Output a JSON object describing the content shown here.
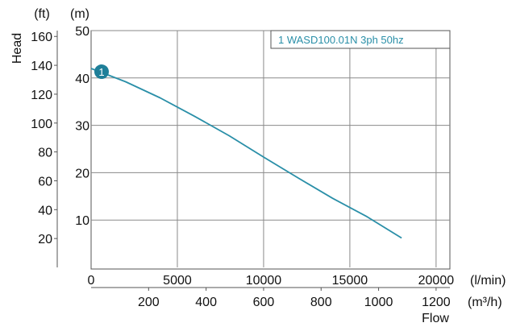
{
  "chart_data": {
    "type": "line",
    "ylabel": "Head",
    "xlabel": "Flow",
    "left_outer_axis": {
      "unit": "(ft)",
      "ticks": [
        "20",
        "40",
        "60",
        "80",
        "100",
        "120",
        "140",
        "160"
      ],
      "values": [
        20,
        40,
        60,
        80,
        100,
        120,
        140,
        160
      ]
    },
    "left_inner_axis": {
      "unit": "(m)",
      "ticks": [
        "10",
        "20",
        "30",
        "40",
        "50"
      ],
      "values": [
        10,
        20,
        30,
        40,
        50
      ],
      "ylim": [
        0,
        50
      ]
    },
    "bottom_axis_primary": {
      "unit": "(l/min)",
      "ticks": [
        "0",
        "5000",
        "10000",
        "15000",
        "20000"
      ],
      "values": [
        0,
        5000,
        10000,
        15000,
        20000
      ],
      "xlim": [
        0,
        20800
      ]
    },
    "bottom_axis_secondary": {
      "unit": "(m³/h)",
      "ticks": [
        "200",
        "400",
        "600",
        "800",
        "1000",
        "1200"
      ],
      "values": [
        200,
        400,
        600,
        800,
        1000,
        1200
      ]
    },
    "legend": {
      "text": "1 WASD100.01N 3ph 50hz",
      "position": "top-right"
    },
    "series": [
      {
        "name": "1 WASD100.01N 3ph 50hz",
        "color": "#2a8fa8",
        "marker": "1",
        "x": [
          0,
          2000,
          4000,
          6000,
          8000,
          10000,
          12000,
          14000,
          16000,
          18000
        ],
        "y": [
          42,
          39.2,
          35.8,
          31.9,
          27.8,
          23.3,
          18.9,
          14.6,
          10.7,
          6.2
        ]
      }
    ],
    "grid": true
  }
}
